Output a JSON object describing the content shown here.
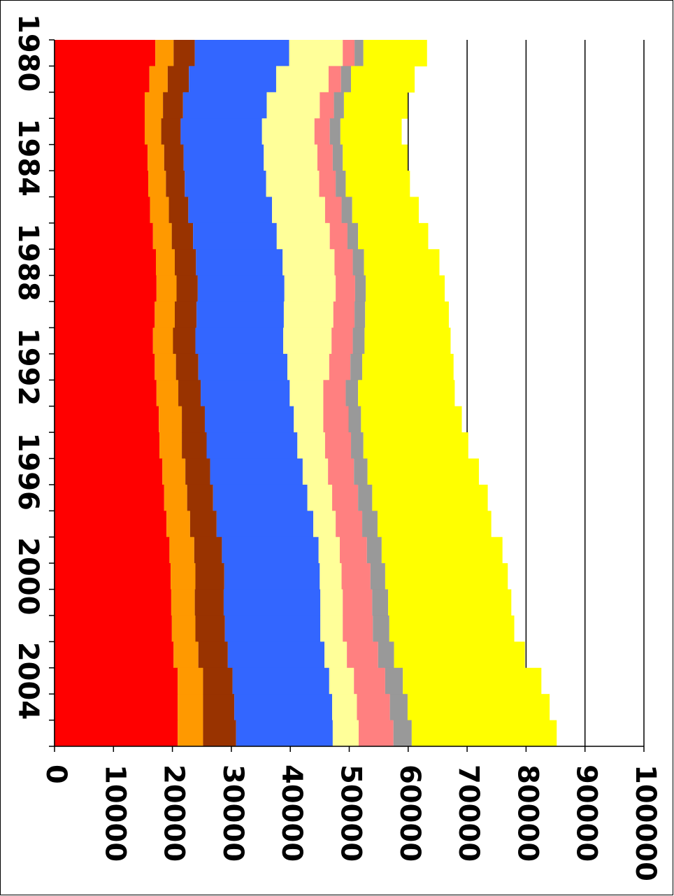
{
  "chart_data": {
    "type": "stacked-barh",
    "categories": [
      "1980",
      null,
      null,
      null,
      "1984",
      null,
      null,
      null,
      "1988",
      null,
      null,
      null,
      "1992",
      null,
      null,
      null,
      "1996",
      null,
      null,
      null,
      "2000",
      null,
      null,
      null,
      "2004",
      null,
      null
    ],
    "series": [
      {
        "color": "#ff0000",
        "values": [
          17100,
          16100,
          15300,
          15300,
          15800,
          15900,
          16200,
          16700,
          17200,
          17300,
          17000,
          16700,
          17000,
          17300,
          17700,
          17800,
          18300,
          18600,
          19000,
          19500,
          19700,
          19800,
          19900,
          20200,
          20900,
          20900,
          20900
        ]
      },
      {
        "color": "#ff9900",
        "values": [
          3100,
          3100,
          3100,
          2800,
          2800,
          3000,
          3200,
          3200,
          3200,
          3400,
          3400,
          3400,
          3600,
          3700,
          3900,
          3800,
          3900,
          3900,
          4000,
          4200,
          4200,
          4000,
          4000,
          4200,
          4300,
          4300,
          4300
        ]
      },
      {
        "color": "#993300",
        "values": [
          3600,
          3600,
          3400,
          3300,
          3300,
          3200,
          3300,
          3600,
          3600,
          3600,
          3700,
          3800,
          3800,
          3800,
          3900,
          4200,
          4200,
          4400,
          4500,
          4700,
          4900,
          4900,
          5000,
          5000,
          5000,
          5300,
          5600
        ]
      },
      {
        "color": "#3366ff",
        "values": [
          16000,
          14800,
          14200,
          13800,
          13600,
          13800,
          14200,
          14200,
          14700,
          14700,
          14800,
          14900,
          15100,
          15100,
          15100,
          15400,
          15700,
          16000,
          16400,
          16400,
          16200,
          16400,
          16200,
          16400,
          16400,
          16600,
          16400
        ]
      },
      {
        "color": "#ffff99",
        "values": [
          9100,
          8900,
          9000,
          8900,
          9100,
          9000,
          9000,
          9000,
          8800,
          8700,
          8400,
          8200,
          7100,
          5700,
          5000,
          4700,
          4300,
          4200,
          3800,
          3600,
          3700,
          3800,
          3800,
          3800,
          4200,
          4200,
          4400
        ]
      },
      {
        "color": "#ff8080",
        "values": [
          2000,
          2100,
          2400,
          2600,
          2600,
          2800,
          2800,
          3000,
          3100,
          3300,
          3600,
          3600,
          3600,
          3800,
          4300,
          4400,
          4400,
          4400,
          4500,
          4600,
          4900,
          5000,
          5100,
          5300,
          5300,
          5600,
          5900
        ]
      },
      {
        "color": "#999999",
        "values": [
          1500,
          1700,
          1700,
          1800,
          1700,
          1700,
          1800,
          1800,
          1900,
          1800,
          1800,
          2000,
          2000,
          2100,
          2100,
          2100,
          2300,
          2400,
          2600,
          2500,
          2500,
          2700,
          2800,
          2700,
          3000,
          3000,
          3100
        ]
      },
      {
        "color": "#ffff00",
        "values": [
          10800,
          10800,
          10800,
          10400,
          11000,
          10900,
          11300,
          11900,
          12800,
          13400,
          14200,
          14600,
          15500,
          16400,
          17100,
          17800,
          18900,
          19600,
          19300,
          20500,
          20800,
          20900,
          21200,
          22200,
          23500,
          24100,
          24600
        ]
      }
    ],
    "xlim": [
      0,
      100000
    ],
    "xticks": [
      0,
      10000,
      20000,
      30000,
      40000,
      50000,
      60000,
      70000,
      80000,
      90000,
      100000
    ],
    "grid": true
  }
}
